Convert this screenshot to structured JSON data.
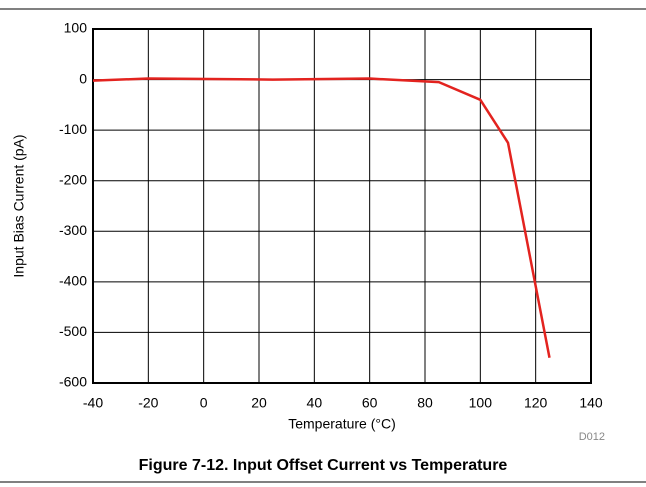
{
  "chart_data": {
    "type": "line",
    "title": "Figure 7-12. Input Offset Current vs Temperature",
    "xlabel": "Temperature (°C)",
    "ylabel": "Input Bias Current (pA)",
    "annotation": "D012",
    "x": [
      -40,
      -20,
      25,
      60,
      85,
      100,
      110,
      125
    ],
    "values": [
      -2,
      2,
      0,
      2,
      -5,
      -40,
      -125,
      -550
    ],
    "color": "#e3231f",
    "xlim": [
      -40,
      140
    ],
    "xticks": [
      -40,
      -20,
      0,
      20,
      40,
      60,
      80,
      100,
      120,
      140
    ],
    "ylim": [
      -600,
      100
    ],
    "yticks": [
      -600,
      -500,
      -400,
      -300,
      -200,
      -100,
      0,
      100
    ],
    "grid": true
  }
}
